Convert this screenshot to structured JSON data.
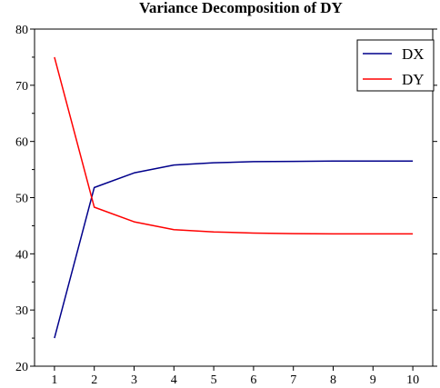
{
  "chart_data": {
    "type": "line",
    "title": "Variance Decomposition of DY",
    "xlabel": "",
    "ylabel": "",
    "x": [
      1,
      2,
      3,
      4,
      5,
      6,
      7,
      8,
      9,
      10
    ],
    "xlim": [
      0.5,
      10.5
    ],
    "ylim": [
      20,
      80
    ],
    "xticks": [
      1,
      2,
      3,
      4,
      5,
      6,
      7,
      8,
      9,
      10
    ],
    "yticks": [
      20,
      30,
      40,
      50,
      60,
      70,
      80
    ],
    "grid": false,
    "legend_position": "top-right",
    "series": [
      {
        "name": "DX",
        "color": "#00008b",
        "values": [
          25.0,
          51.8,
          54.4,
          55.8,
          56.2,
          56.4,
          56.45,
          56.5,
          56.5,
          56.5
        ]
      },
      {
        "name": "DY",
        "color": "#ff0000",
        "values": [
          75.0,
          48.3,
          45.7,
          44.3,
          43.9,
          43.7,
          43.6,
          43.55,
          43.55,
          43.55
        ]
      }
    ]
  }
}
